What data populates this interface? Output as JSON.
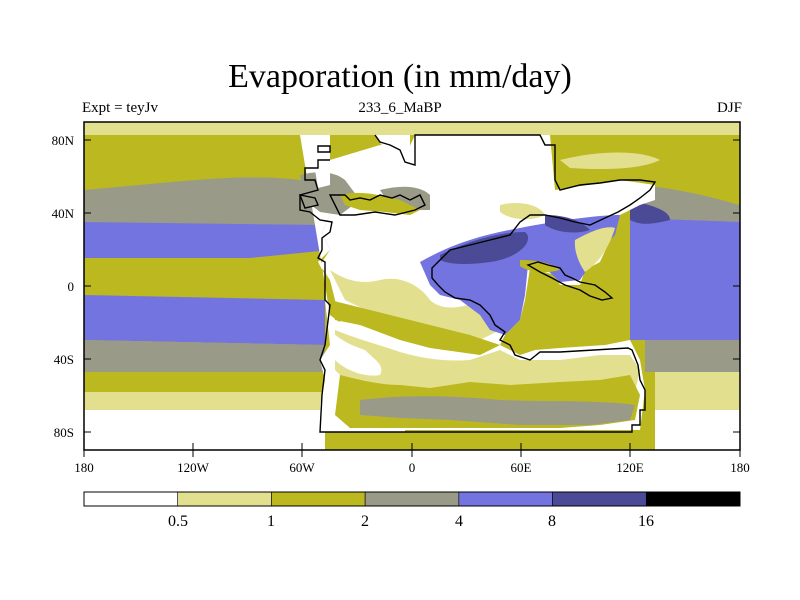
{
  "title": "Evaporation (in mm/day)",
  "subtitle_left": "Expt = teyJv",
  "subtitle_center": "233_6_MaBP",
  "subtitle_right": "DJF",
  "x_ticks": [
    "180",
    "120W",
    "60W",
    "0",
    "60E",
    "120E",
    "180"
  ],
  "y_ticks": [
    "80N",
    "40N",
    "0",
    "40S",
    "80S"
  ],
  "colorbar": {
    "labels": [
      "0.5",
      "1",
      "2",
      "4",
      "8",
      "16"
    ],
    "colors": [
      "#ffffff",
      "#e2e08e",
      "#bcb81f",
      "#9a9a88",
      "#7474e0",
      "#4a4a96",
      "#000000"
    ]
  }
}
